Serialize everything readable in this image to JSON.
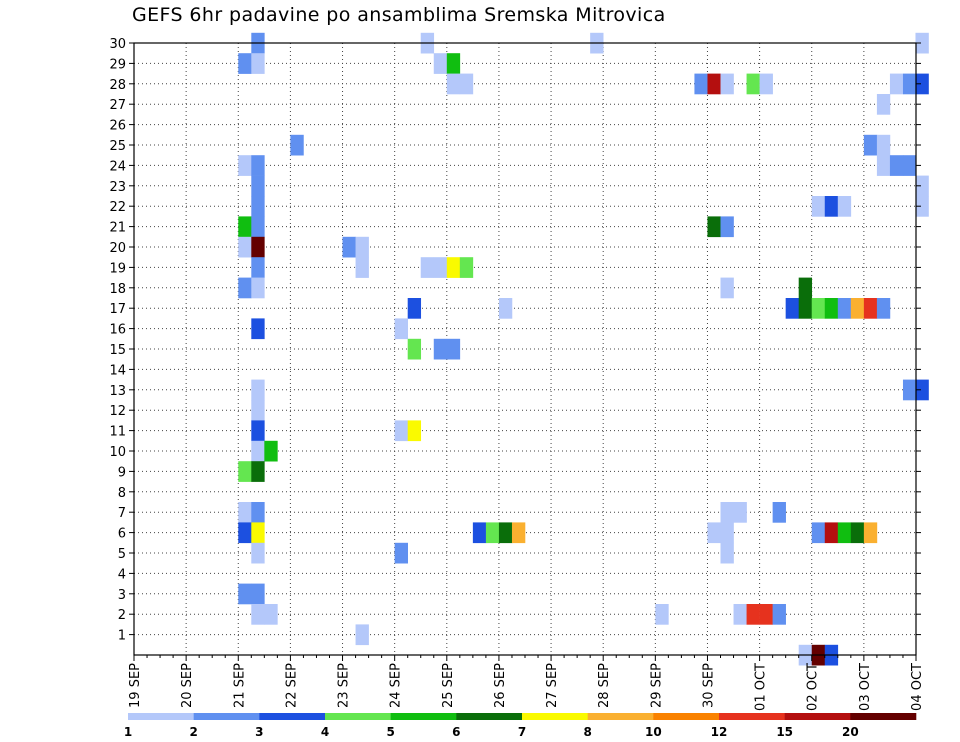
{
  "chart_data": {
    "type": "heatmap",
    "title": "GEFS 6hr padavine po ansamblima Sremska Mitrovica",
    "x_tick_labels": [
      "19 SEP",
      "20 SEP",
      "21 SEP",
      "22 SEP",
      "23 SEP",
      "24 SEP",
      "25 SEP",
      "26 SEP",
      "27 SEP",
      "28 SEP",
      "29 SEP",
      "30 SEP",
      "01 OCT",
      "02 OCT",
      "03 OCT",
      "04 OCT"
    ],
    "x_range_days": [
      0,
      15
    ],
    "y_tick_labels": [
      "1",
      "2",
      "3",
      "4",
      "5",
      "6",
      "7",
      "8",
      "9",
      "10",
      "11",
      "12",
      "13",
      "14",
      "15",
      "16",
      "17",
      "18",
      "19",
      "20",
      "21",
      "22",
      "23",
      "24",
      "25",
      "26",
      "27",
      "28",
      "29",
      "30"
    ],
    "y_range": [
      0,
      30
    ],
    "grid": true,
    "legend": {
      "labels": [
        "1",
        "2",
        "3",
        "4",
        "5",
        "6",
        "7",
        "8",
        "10",
        "12",
        "15",
        "20"
      ],
      "colors": [
        "#b4c8fa",
        "#6090f0",
        "#1c50e0",
        "#64e650",
        "#10be10",
        "#0a6e0a",
        "#fafa00",
        "#fab030",
        "#fa8200",
        "#e6321e",
        "#b40f0f",
        "#640000"
      ]
    },
    "cells": [
      [
        0,
        30,
        2.25,
        2
      ],
      [
        0,
        30,
        5.5,
        1
      ],
      [
        0,
        30,
        8.75,
        1
      ],
      [
        0,
        30,
        14.99,
        1
      ],
      [
        0,
        29,
        2,
        2
      ],
      [
        0,
        29,
        2.25,
        1
      ],
      [
        0,
        29,
        5.75,
        1
      ],
      [
        0,
        29,
        6,
        5
      ],
      [
        0,
        28,
        6,
        1
      ],
      [
        0,
        28,
        6.25,
        1
      ],
      [
        0,
        28,
        10.75,
        2
      ],
      [
        0,
        28,
        11,
        11
      ],
      [
        0,
        28,
        11.25,
        1
      ],
      [
        0,
        28,
        11.75,
        4
      ],
      [
        0,
        28,
        12,
        1
      ],
      [
        0,
        28,
        14.5,
        1
      ],
      [
        0,
        28,
        14.75,
        2
      ],
      [
        0,
        28,
        14.99,
        3
      ],
      [
        0,
        27,
        14.25,
        1
      ],
      [
        0,
        25,
        3,
        2
      ],
      [
        0,
        25,
        14,
        2
      ],
      [
        0,
        25,
        14.25,
        1
      ],
      [
        0,
        24,
        2,
        1
      ],
      [
        0,
        24,
        2.25,
        2
      ],
      [
        0,
        24,
        14.25,
        1
      ],
      [
        0,
        24,
        14.5,
        2
      ],
      [
        0,
        24,
        14.75,
        2
      ],
      [
        0,
        23,
        2.25,
        2
      ],
      [
        0,
        23,
        14.99,
        1
      ],
      [
        0,
        22,
        2.25,
        2
      ],
      [
        0,
        22,
        14.99,
        1
      ],
      [
        0,
        22,
        13,
        1
      ],
      [
        0,
        22,
        13.25,
        3
      ],
      [
        0,
        22,
        13.5,
        1
      ],
      [
        0,
        21,
        2,
        5
      ],
      [
        0,
        21,
        2.25,
        2
      ],
      [
        0,
        21,
        11,
        6
      ],
      [
        0,
        21,
        11.25,
        2
      ],
      [
        0,
        20,
        2,
        1
      ],
      [
        0,
        20,
        2.25,
        12
      ],
      [
        0,
        20,
        4,
        2
      ],
      [
        0,
        20,
        4.25,
        1
      ],
      [
        0,
        19,
        2.25,
        2
      ],
      [
        0,
        19,
        4.25,
        1
      ],
      [
        0,
        19,
        5.5,
        1
      ],
      [
        0,
        19,
        5.75,
        1
      ],
      [
        0,
        19,
        6,
        7
      ],
      [
        0,
        19,
        6.25,
        4
      ],
      [
        0,
        18,
        2,
        2
      ],
      [
        0,
        18,
        2.25,
        1
      ],
      [
        0,
        18,
        11.25,
        1
      ],
      [
        0,
        18,
        12.75,
        6
      ],
      [
        0,
        17,
        7,
        1
      ],
      [
        0,
        17,
        12.5,
        3
      ],
      [
        0,
        17,
        12.75,
        6
      ],
      [
        0,
        17,
        13,
        4
      ],
      [
        0,
        17,
        13.25,
        5
      ],
      [
        0,
        17,
        13.5,
        2
      ],
      [
        0,
        17,
        13.75,
        8
      ],
      [
        0,
        17,
        14,
        10
      ],
      [
        0,
        17,
        14.25,
        2
      ],
      [
        0,
        17,
        5.25,
        3
      ],
      [
        0,
        16,
        2.25,
        3
      ],
      [
        0,
        16,
        5,
        1
      ],
      [
        0,
        15,
        5.25,
        4
      ],
      [
        0,
        15,
        5.75,
        2
      ],
      [
        0,
        15,
        6,
        2
      ],
      [
        0,
        13,
        2.25,
        1
      ],
      [
        0,
        13,
        14.75,
        2
      ],
      [
        0,
        13,
        14.99,
        3
      ],
      [
        0,
        12,
        2.25,
        1
      ],
      [
        0,
        11,
        2.25,
        3
      ],
      [
        0,
        11,
        5,
        1
      ],
      [
        0,
        11,
        5.25,
        7
      ],
      [
        0,
        10,
        2.25,
        1
      ],
      [
        0,
        10,
        2.5,
        5
      ],
      [
        0,
        9,
        2,
        4
      ],
      [
        0,
        9,
        2.25,
        6
      ],
      [
        0,
        7,
        2,
        1
      ],
      [
        0,
        7,
        2.25,
        2
      ],
      [
        0,
        7,
        11.25,
        1
      ],
      [
        0,
        7,
        11.5,
        1
      ],
      [
        0,
        7,
        12.25,
        2
      ],
      [
        0,
        6,
        2,
        3
      ],
      [
        0,
        6,
        2.25,
        7
      ],
      [
        0,
        6,
        6.5,
        3
      ],
      [
        0,
        6,
        6.75,
        4
      ],
      [
        0,
        6,
        7,
        6
      ],
      [
        0,
        6,
        7.25,
        8
      ],
      [
        0,
        6,
        11,
        1
      ],
      [
        0,
        6,
        11.25,
        1
      ],
      [
        0,
        6,
        13,
        2
      ],
      [
        0,
        6,
        13.25,
        11
      ],
      [
        0,
        6,
        13.5,
        5
      ],
      [
        0,
        6,
        13.75,
        6
      ],
      [
        0,
        6,
        14,
        8
      ],
      [
        0,
        5,
        2.25,
        1
      ],
      [
        0,
        5,
        5,
        2
      ],
      [
        0,
        5,
        11.25,
        1
      ],
      [
        0,
        3,
        2,
        2
      ],
      [
        0,
        3,
        2.25,
        2
      ],
      [
        0,
        2,
        2.25,
        1
      ],
      [
        0,
        2,
        2.5,
        1
      ],
      [
        0,
        2,
        10,
        1
      ],
      [
        0,
        2,
        11.5,
        1
      ],
      [
        0,
        2,
        11.75,
        10
      ],
      [
        0,
        2,
        12,
        10
      ],
      [
        0,
        2,
        12.25,
        2
      ],
      [
        0,
        1,
        4.25,
        1
      ],
      [
        0,
        0,
        12.75,
        1
      ],
      [
        0,
        0,
        13,
        12
      ],
      [
        0,
        0,
        13.25,
        3
      ]
    ]
  }
}
